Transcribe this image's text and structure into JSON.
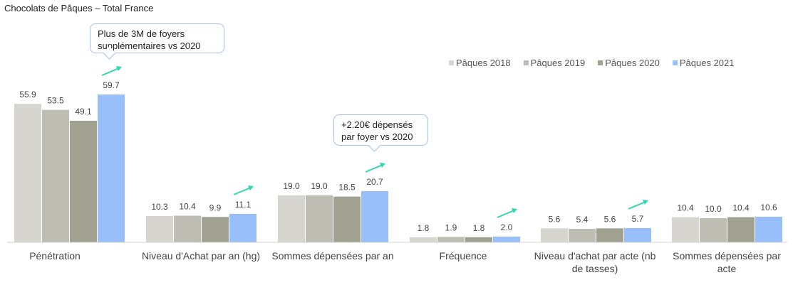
{
  "title": "Chocolats de Pâques – Total France",
  "colors": {
    "s2018": "#d6d5cf",
    "s2019": "#bdbdb3",
    "s2020": "#a0a190",
    "s2021": "#99bffa",
    "arrow": "#2fd6b0"
  },
  "callouts": [
    {
      "lines": [
        "Plus de 3M de foyers",
        "supplémentaires vs 2020"
      ]
    },
    {
      "lines": [
        "+2.20€ dépensés",
        "par foyer vs 2020"
      ]
    }
  ],
  "chart_data": {
    "type": "bar",
    "categories": [
      "Pénétration",
      "Niveau d'Achat par an (hg)",
      "Sommes dépensées par an",
      "Fréquence",
      "Niveau d'achat par acte (nb de tasses)",
      "Sommes dépensées par acte"
    ],
    "category_lines": [
      [
        "Pénétration"
      ],
      [
        "Niveau d'Achat par an (hg)"
      ],
      [
        "Sommes dépensées par an"
      ],
      [
        "Fréquence"
      ],
      [
        "Niveau d'achat par acte (nb",
        "de tasses)"
      ],
      [
        "Sommes dépensées par",
        "acte"
      ]
    ],
    "series": [
      {
        "name": "Pâques 2018",
        "values": [
          55.9,
          10.3,
          19.0,
          1.8,
          5.6,
          10.4
        ],
        "labels": [
          "55.9",
          "10.3",
          "19.0",
          "1.8",
          "5.6",
          "10.4"
        ]
      },
      {
        "name": "Pâques 2019",
        "values": [
          53.5,
          10.4,
          19.0,
          1.9,
          5.4,
          10.0
        ],
        "labels": [
          "53.5",
          "10.4",
          "19.0",
          "1.9",
          "5.4",
          "10.0"
        ]
      },
      {
        "name": "Pâques 2020",
        "values": [
          49.1,
          9.9,
          18.5,
          1.8,
          5.6,
          10.4
        ],
        "labels": [
          "49.1",
          "9.9",
          "18.5",
          "1.8",
          "5.6",
          "10.4"
        ]
      },
      {
        "name": "Pâques 2021",
        "values": [
          59.7,
          11.1,
          20.7,
          2.0,
          5.7,
          10.6
        ],
        "labels": [
          "59.7",
          "11.1",
          "20.7",
          "2.0",
          "5.7",
          "10.6"
        ]
      }
    ],
    "trend_arrows_on": [
      "Pénétration",
      "Niveau d'Achat par an (hg)",
      "Sommes dépensées par an",
      "Fréquence",
      "Niveau d'achat par acte (nb de tasses)"
    ],
    "legend_position": "top-right",
    "grid": false
  }
}
